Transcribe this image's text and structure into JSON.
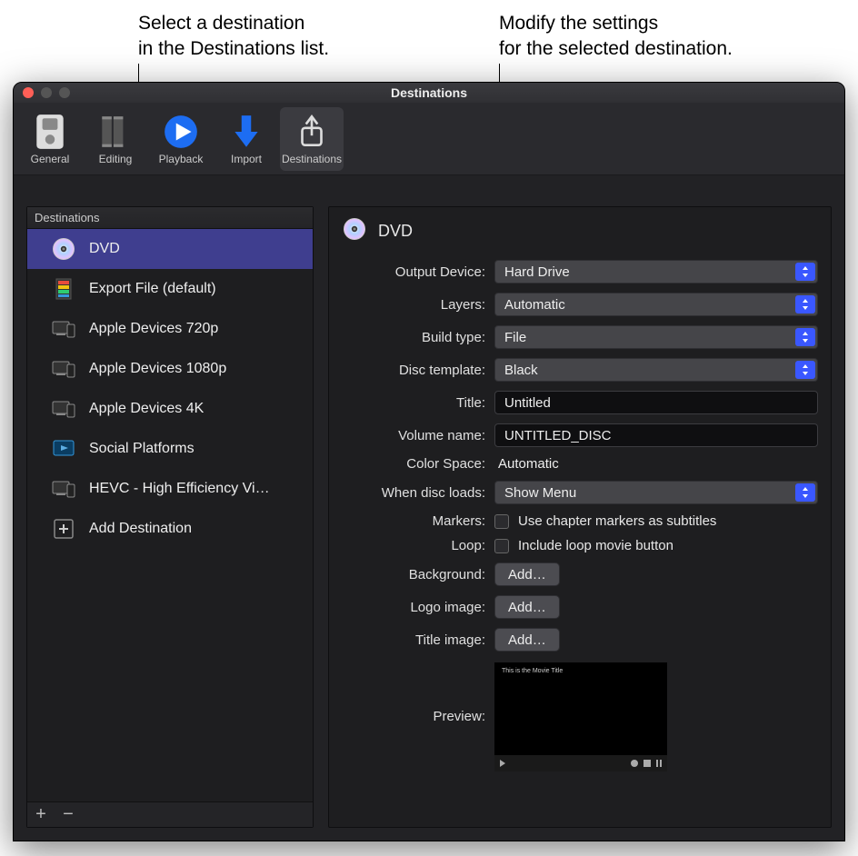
{
  "callouts": {
    "left": "Select a destination\nin the Destinations list.",
    "right": "Modify the settings\nfor the selected destination."
  },
  "window": {
    "title": "Destinations"
  },
  "toolbar": {
    "general": "General",
    "editing": "Editing",
    "playback": "Playback",
    "import": "Import",
    "destinations": "Destinations"
  },
  "sidebar": {
    "header": "Destinations",
    "items": [
      {
        "label": "DVD"
      },
      {
        "label": "Export File (default)"
      },
      {
        "label": "Apple Devices 720p"
      },
      {
        "label": "Apple Devices 1080p"
      },
      {
        "label": "Apple Devices 4K"
      },
      {
        "label": "Social Platforms"
      },
      {
        "label": "HEVC - High Efficiency Vi…"
      },
      {
        "label": "Add Destination"
      }
    ]
  },
  "detail": {
    "title": "DVD",
    "labels": {
      "output_device": "Output Device:",
      "layers": "Layers:",
      "build_type": "Build type:",
      "disc_template": "Disc template:",
      "title": "Title:",
      "volume_name": "Volume name:",
      "color_space": "Color Space:",
      "when_disc_loads": "When disc loads:",
      "markers": "Markers:",
      "loop": "Loop:",
      "background": "Background:",
      "logo_image": "Logo image:",
      "title_image": "Title image:",
      "preview": "Preview:"
    },
    "values": {
      "output_device": "Hard Drive",
      "layers": "Automatic",
      "build_type": "File",
      "disc_template": "Black",
      "title": "Untitled",
      "volume_name": "UNTITLED_DISC",
      "color_space": "Automatic",
      "when_disc_loads": "Show Menu",
      "markers_text": "Use chapter markers as subtitles",
      "loop_text": "Include loop movie button",
      "add_button": "Add…",
      "preview_title": "This is the Movie Title"
    }
  },
  "colors": {
    "selection": "#3f3e8f",
    "accent_blue": "#3a57ff",
    "bg_window": "#2a2a2e",
    "bg_panel": "#1e1e20"
  }
}
